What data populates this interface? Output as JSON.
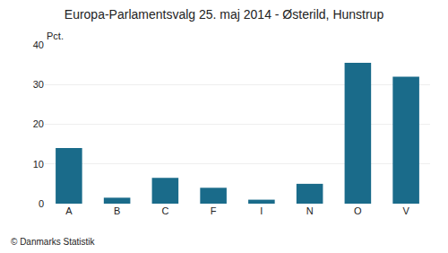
{
  "chart_data": {
    "type": "bar",
    "title": "Europa-Parlamentsvalg 25. maj 2014 - Østerild, Hunstrup",
    "categories": [
      "A",
      "B",
      "C",
      "F",
      "I",
      "N",
      "O",
      "V"
    ],
    "values": [
      14.0,
      1.5,
      6.5,
      4.0,
      1.0,
      5.0,
      35.5,
      32.0
    ],
    "color": "#1a6b8a",
    "ylim": [
      0,
      40
    ],
    "yticks": [
      0,
      10,
      20,
      30,
      40
    ],
    "grid": true,
    "ylabel": "Pct.",
    "annotations": [
      "© Danmarks Statistik"
    ]
  }
}
